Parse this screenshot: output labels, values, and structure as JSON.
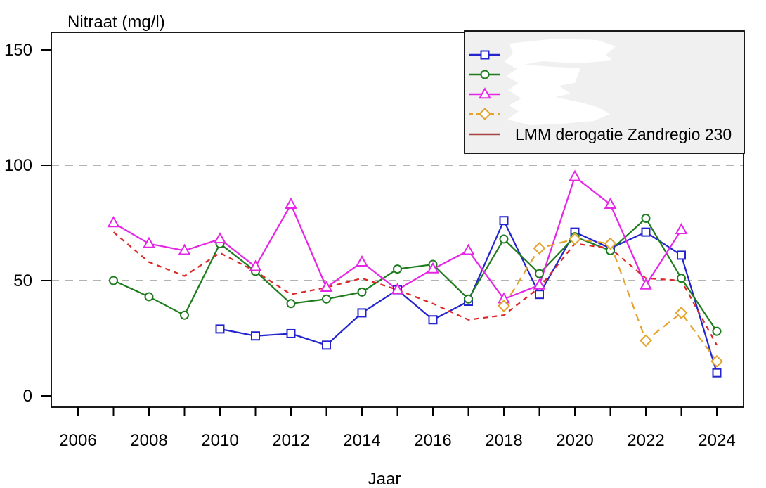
{
  "title": "Nitraat (mg/l)",
  "xlabel": "Jaar",
  "chart_data": {
    "type": "line",
    "title": "Nitraat (mg/l)",
    "xlabel": "Jaar",
    "ylabel": "Nitraat (mg/l)",
    "ylim": [
      0,
      160
    ],
    "yticks": [
      0,
      50,
      100,
      150
    ],
    "xticks_minor": [
      2006,
      2007,
      2008,
      2009,
      2010,
      2011,
      2012,
      2013,
      2014,
      2015,
      2016,
      2017,
      2018,
      2019,
      2020,
      2021,
      2022,
      2023,
      2024
    ],
    "xticks_labeled": [
      2006,
      2008,
      2010,
      2012,
      2014,
      2016,
      2018,
      2020,
      2022,
      2024
    ],
    "gridlines_y": [
      50,
      100
    ],
    "grid_color": "#9a9a9a",
    "legend_position": "top-right",
    "series": [
      {
        "name": "",
        "legend_redacted": true,
        "marker": "square",
        "line": "solid",
        "color": "#2424ce",
        "x": [
          2010,
          2011,
          2012,
          2013,
          2014,
          2015,
          2016,
          2017,
          2018,
          2019,
          2020,
          2021,
          2022,
          2023,
          2024
        ],
        "y": [
          29,
          26,
          27,
          22,
          36,
          46,
          33,
          41,
          76,
          44,
          71,
          64,
          71,
          61,
          10
        ]
      },
      {
        "name": "",
        "legend_redacted": true,
        "marker": "circle",
        "line": "solid",
        "color": "#1e7b1e",
        "x": [
          2007,
          2008,
          2009,
          2010,
          2011,
          2012,
          2013,
          2014,
          2015,
          2016,
          2017,
          2018,
          2019,
          2020,
          2021,
          2022,
          2023,
          2024
        ],
        "y": [
          50,
          43,
          35,
          66,
          54,
          40,
          42,
          45,
          55,
          57,
          42,
          68,
          53,
          69,
          63,
          77,
          51,
          28
        ]
      },
      {
        "name": "",
        "legend_redacted": true,
        "marker": "triangle",
        "line": "solid",
        "color": "#e626e6",
        "x": [
          2007,
          2008,
          2009,
          2010,
          2011,
          2012,
          2013,
          2014,
          2015,
          2016,
          2017,
          2018,
          2019,
          2020,
          2021,
          2022,
          2023
        ],
        "y": [
          75,
          66,
          63,
          68,
          56,
          83,
          47,
          58,
          46,
          55,
          63,
          42,
          48,
          95,
          83,
          48,
          72
        ]
      },
      {
        "name": "",
        "legend_redacted": true,
        "marker": "diamond",
        "line": "dashed",
        "color": "#e3a32d",
        "x": [
          2018,
          2019,
          2020,
          2021,
          2022,
          2023,
          2024
        ],
        "y": [
          39,
          64,
          68,
          66,
          24,
          36,
          15
        ]
      },
      {
        "name": "LMM derogatie Zandregio 230",
        "legend_redacted": false,
        "marker": "none",
        "line": "dashed",
        "color": "#dd2626",
        "x": [
          2007,
          2008,
          2009,
          2010,
          2011,
          2012,
          2013,
          2014,
          2015,
          2016,
          2017,
          2018,
          2019,
          2020,
          2021,
          2022,
          2023,
          2024
        ],
        "y": [
          71,
          58,
          52,
          62,
          54,
          44,
          47,
          51,
          46,
          40,
          33,
          35,
          47,
          66,
          64,
          51,
          50,
          22
        ]
      }
    ]
  },
  "legend": {
    "entries": [
      {
        "label": "",
        "redacted": true,
        "marker": "square",
        "line": "solid",
        "color": "#2424ce"
      },
      {
        "label": "",
        "redacted": true,
        "marker": "circle",
        "line": "solid",
        "color": "#1e7b1e"
      },
      {
        "label": "",
        "redacted": true,
        "marker": "triangle",
        "line": "solid",
        "color": "#e626e6"
      },
      {
        "label": "",
        "redacted": true,
        "marker": "diamond",
        "line": "dashed",
        "color": "#e3a32d"
      },
      {
        "label": "LMM derogatie Zandregio 230",
        "redacted": false,
        "marker": "none",
        "line": "solid",
        "color": "#aa4444"
      }
    ]
  }
}
